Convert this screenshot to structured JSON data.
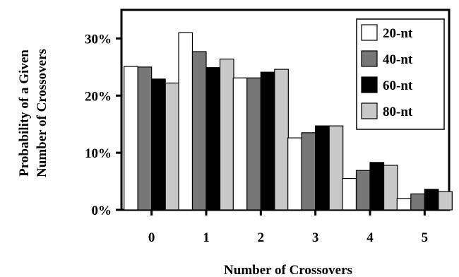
{
  "chart_data": {
    "type": "bar",
    "categories": [
      "0",
      "1",
      "2",
      "3",
      "4",
      "5"
    ],
    "series": [
      {
        "name": "20-nt",
        "color": "#ffffff",
        "values": [
          25.1,
          31.0,
          23.1,
          12.6,
          5.5,
          2.0
        ]
      },
      {
        "name": "40-nt",
        "color": "#777777",
        "values": [
          25.0,
          27.7,
          23.1,
          13.5,
          6.9,
          2.8
        ]
      },
      {
        "name": "60-nt",
        "color": "#000000",
        "values": [
          22.9,
          24.9,
          24.1,
          14.7,
          8.3,
          3.6
        ]
      },
      {
        "name": "80-nt",
        "color": "#c8c8c8",
        "values": [
          22.2,
          26.4,
          24.6,
          14.7,
          7.8,
          3.2
        ]
      }
    ],
    "yticks": [
      "0%",
      "10%",
      "20%",
      "30%"
    ],
    "ytick_values": [
      0,
      10,
      20,
      30
    ],
    "ylim": [
      0,
      35
    ],
    "xlabel": "Number of Crossovers",
    "ylabel_lines": [
      "Probability of a Given",
      "Number of Crossovers"
    ],
    "legend_position": "top-right",
    "grid": false
  }
}
